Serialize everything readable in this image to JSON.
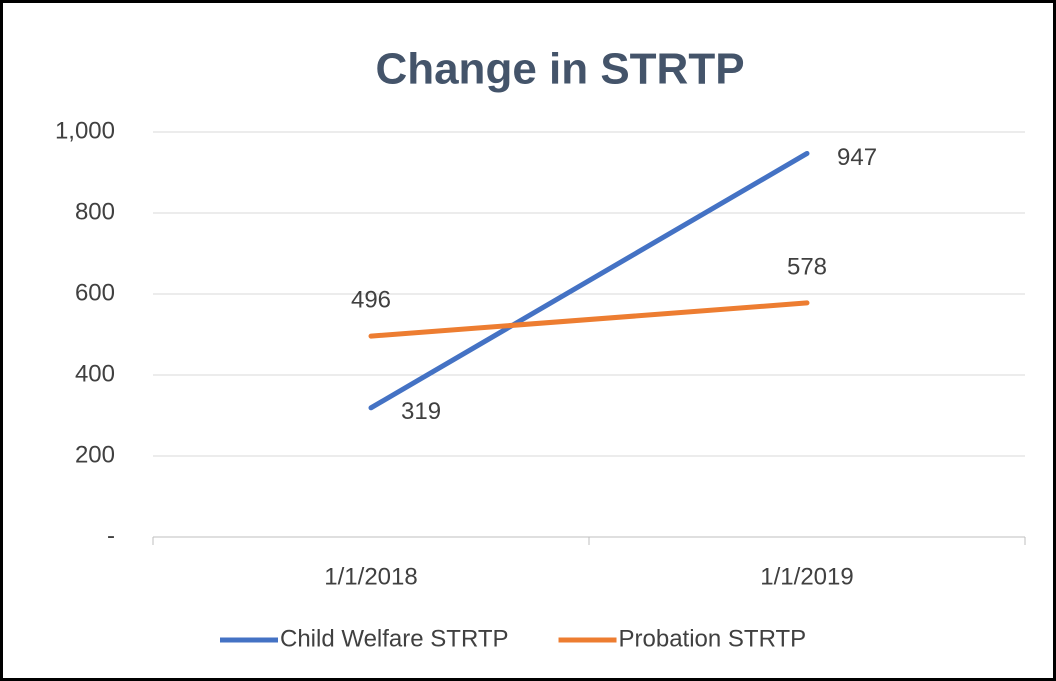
{
  "chart_data": {
    "type": "line",
    "title": "Change in STRTP",
    "categories": [
      "1/1/2018",
      "1/1/2019"
    ],
    "series": [
      {
        "name": "Child Welfare STRTP",
        "color": "#4472c4",
        "values": [
          319,
          947
        ]
      },
      {
        "name": "Probation STRTP",
        "color": "#ed7d31",
        "values": [
          496,
          578
        ]
      }
    ],
    "ylim": [
      0,
      1000
    ],
    "yticks": [
      {
        "value": 0,
        "label": "-"
      },
      200,
      400,
      600,
      800,
      {
        "value": 1000,
        "label": "1,000"
      }
    ],
    "grid": true,
    "legend": "bottom"
  }
}
